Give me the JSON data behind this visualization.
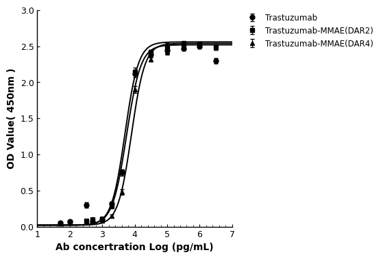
{
  "title": "",
  "xlabel": "Ab concertration Log (pg/mL)",
  "ylabel": "OD Value( 450nm )",
  "xlim": [
    1,
    7
  ],
  "ylim": [
    0.0,
    3.0
  ],
  "xticks": [
    1,
    2,
    3,
    4,
    5,
    6,
    7
  ],
  "yticks": [
    0.0,
    0.5,
    1.0,
    1.5,
    2.0,
    2.5,
    3.0
  ],
  "series": [
    {
      "label": "Trastuzumab",
      "marker": "o",
      "color": "#000000",
      "x_data": [
        1.7,
        2.0,
        2.5,
        2.7,
        3.0,
        3.3,
        3.6,
        4.0,
        4.5,
        5.0,
        5.5,
        6.0,
        6.5
      ],
      "y_data": [
        0.05,
        0.07,
        0.3,
        0.07,
        0.1,
        0.32,
        0.75,
        2.12,
        2.38,
        2.44,
        2.47,
        2.5,
        2.3
      ],
      "y_err": [
        0.01,
        0.01,
        0.04,
        0.01,
        0.01,
        0.03,
        0.04,
        0.05,
        0.03,
        0.04,
        0.03,
        0.03,
        0.04
      ],
      "ec50": 3.75,
      "hill": 2.0,
      "top": 2.52,
      "bottom": 0.02
    },
    {
      "label": "Trastuzumab-MMAE(DAR2)",
      "marker": "s",
      "color": "#000000",
      "x_data": [
        1.7,
        2.0,
        2.5,
        2.7,
        3.0,
        3.3,
        3.6,
        4.0,
        4.5,
        5.0,
        5.5,
        6.0,
        6.5
      ],
      "y_data": [
        0.04,
        0.06,
        0.08,
        0.1,
        0.11,
        0.28,
        0.75,
        2.15,
        2.42,
        2.48,
        2.53,
        2.53,
        2.5
      ],
      "y_err": [
        0.01,
        0.01,
        0.01,
        0.01,
        0.01,
        0.02,
        0.04,
        0.05,
        0.03,
        0.06,
        0.04,
        0.03,
        0.03
      ],
      "ec50": 3.7,
      "hill": 2.1,
      "top": 2.56,
      "bottom": 0.02
    },
    {
      "label": "Trastuzumab-MMAE(DAR4)",
      "marker": "^",
      "color": "#000000",
      "x_data": [
        1.7,
        2.0,
        2.5,
        2.7,
        3.0,
        3.3,
        3.6,
        4.0,
        4.5,
        5.0,
        5.5,
        6.0,
        6.5
      ],
      "y_data": [
        0.04,
        0.06,
        0.06,
        0.08,
        0.08,
        0.15,
        0.48,
        1.9,
        2.32,
        2.42,
        2.5,
        2.52,
        2.48
      ],
      "y_err": [
        0.01,
        0.01,
        0.01,
        0.01,
        0.01,
        0.02,
        0.04,
        0.05,
        0.03,
        0.04,
        0.03,
        0.03,
        0.03
      ],
      "ec50": 3.9,
      "hill": 2.1,
      "top": 2.54,
      "bottom": 0.02
    }
  ],
  "background_color": "#ffffff",
  "line_width": 1.4,
  "marker_size": 5,
  "font_size": 9,
  "label_font_size": 10
}
